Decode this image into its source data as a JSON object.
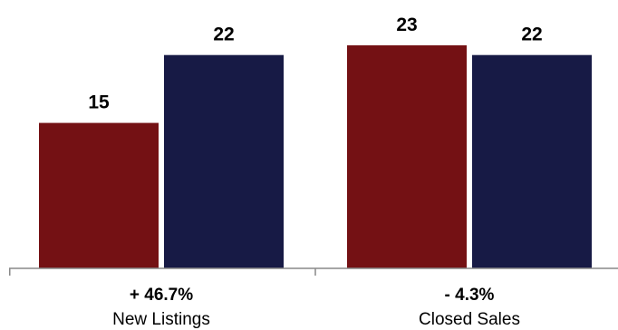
{
  "chart_data": {
    "type": "bar",
    "categories": [
      "New Listings",
      "Closed Sales"
    ],
    "change_labels": [
      "+ 46.7%",
      "- 4.3%"
    ],
    "series": [
      {
        "values": [
          15,
          23
        ],
        "color": "#741114"
      },
      {
        "values": [
          22,
          22
        ],
        "color": "#171a45"
      }
    ],
    "ylim": [
      0,
      23
    ],
    "grid": false,
    "legend": "none",
    "axis_color": "#888888"
  }
}
